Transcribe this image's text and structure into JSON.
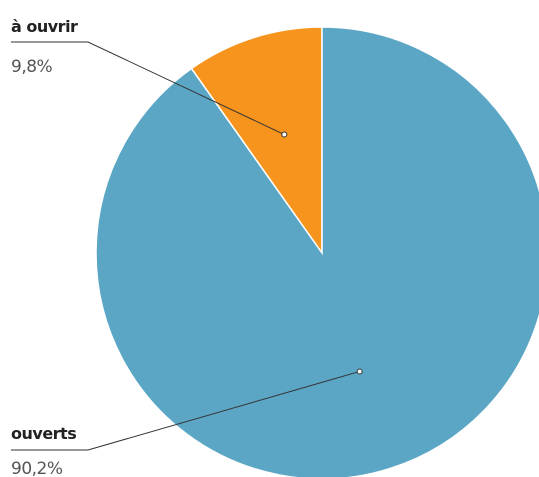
{
  "chart_data": {
    "type": "pie",
    "title": "",
    "slices": [
      {
        "label": "à ouvrir",
        "value": 9.8,
        "value_label": "9,8%",
        "color": "#F7941D"
      },
      {
        "label": "ouverts",
        "value": 90.2,
        "value_label": "90,2%",
        "color": "#5BA6C5"
      }
    ],
    "start": "12 o'clock",
    "direction": "counter-clockwise",
    "slice_border_color": "#ffffff",
    "legend": "none",
    "label_style": "callouts with leader lines"
  }
}
